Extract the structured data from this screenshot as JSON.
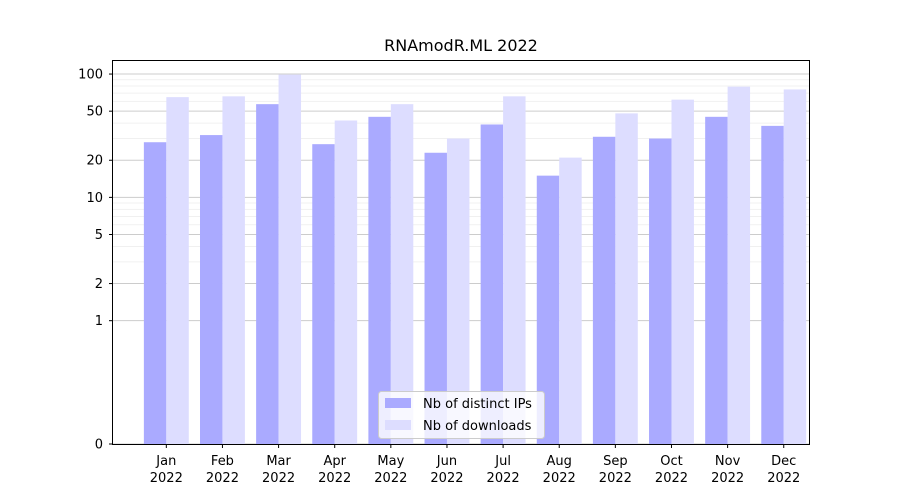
{
  "chart_data": {
    "type": "bar",
    "title": "RNAmodR.ML 2022",
    "xlabel": "",
    "ylabel": "",
    "scale": "symlog",
    "ylim": [
      0,
      130
    ],
    "categories": [
      "Jan\n2022",
      "Feb\n2022",
      "Mar\n2022",
      "Apr\n2022",
      "May\n2022",
      "Jun\n2022",
      "Jul\n2022",
      "Aug\n2022",
      "Sep\n2022",
      "Oct\n2022",
      "Nov\n2022",
      "Dec\n2022"
    ],
    "yticks": [
      0,
      1,
      2,
      5,
      10,
      20,
      50,
      100
    ],
    "grid": true,
    "legend_position": "bottom-center",
    "series": [
      {
        "name": "Nb of distinct IPs",
        "color": "#aaaaff",
        "values": [
          28,
          32,
          57,
          27,
          45,
          23,
          39,
          15,
          31,
          30,
          45,
          38
        ]
      },
      {
        "name": "Nb of downloads",
        "color": "#ddddff",
        "values": [
          65,
          66,
          99,
          42,
          57,
          30,
          66,
          21,
          48,
          62,
          79,
          75
        ]
      }
    ]
  }
}
